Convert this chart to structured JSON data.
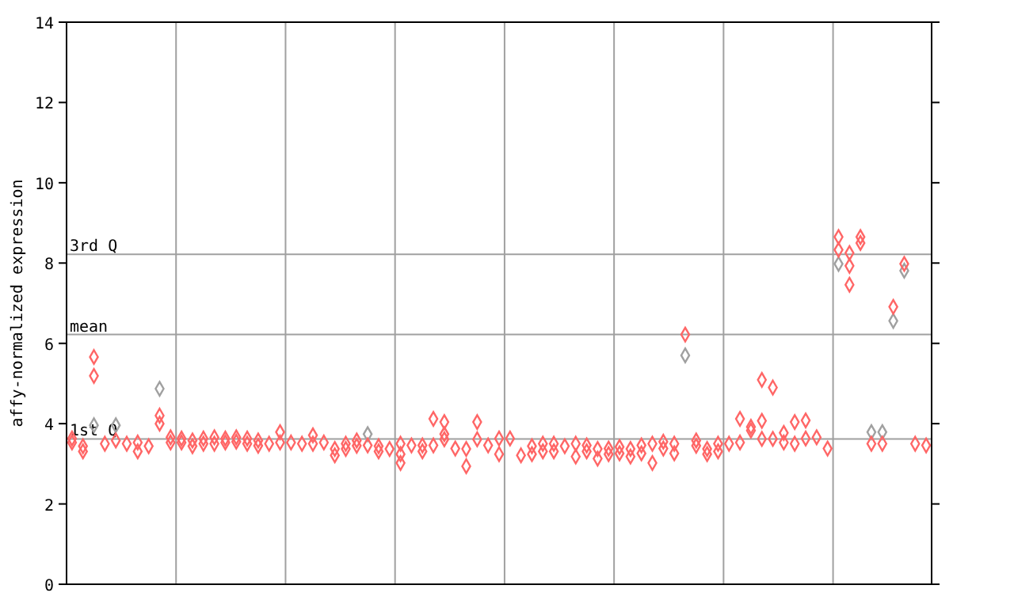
{
  "chart_data": {
    "type": "scatter",
    "ylabel": "affy-normalized expression",
    "ylim": [
      0,
      14
    ],
    "yticks": [
      0,
      2,
      4,
      6,
      8,
      10,
      12,
      14
    ],
    "grid": "x",
    "tick_labels": "y",
    "marker": "diamond",
    "categories": [
      null,
      null,
      null,
      null,
      null,
      null,
      null,
      null,
      null,
      null,
      null,
      null,
      null,
      null,
      null,
      null,
      null,
      null,
      null,
      null,
      null,
      null,
      null,
      null,
      null,
      null,
      null,
      null,
      null,
      null,
      null,
      null,
      null,
      null,
      null,
      null,
      null,
      null,
      null,
      null,
      null,
      null,
      null,
      null,
      null,
      null,
      null,
      null,
      null,
      null,
      null,
      null,
      null,
      null,
      null,
      null,
      null,
      null,
      null,
      null,
      null,
      null,
      null,
      null,
      null,
      null,
      null,
      null,
      null,
      null,
      null,
      null,
      null,
      null,
      null,
      null,
      null,
      null,
      null
    ],
    "ref_lines": [
      {
        "axis": "y",
        "value": 8.22,
        "label": "3rd Q",
        "color": "#a0a0a0"
      },
      {
        "axis": "y",
        "value": 6.22,
        "label": "mean",
        "color": "#a0a0a0"
      },
      {
        "axis": "y",
        "value": 3.62,
        "label": "1st Q",
        "color": "#a0a0a0"
      }
    ],
    "series": [
      {
        "color": "#a0a0a0",
        "values": [
          null,
          null,
          3.96,
          null,
          3.96,
          null,
          null,
          null,
          4.87,
          null,
          null,
          null,
          null,
          null,
          null,
          null,
          null,
          null,
          null,
          null,
          null,
          null,
          null,
          null,
          null,
          null,
          null,
          3.74,
          null,
          null,
          null,
          null,
          null,
          null,
          null,
          null,
          null,
          null,
          null,
          null,
          null,
          null,
          null,
          null,
          null,
          null,
          null,
          null,
          null,
          null,
          null,
          null,
          null,
          null,
          null,
          null,
          5.7,
          null,
          null,
          null,
          null,
          null,
          null,
          null,
          null,
          null,
          null,
          null,
          null,
          null,
          7.98,
          null,
          null,
          3.79,
          3.79,
          6.56,
          7.81,
          null,
          null
        ]
      },
      {
        "color": "#ff6666",
        "values": [
          3.63,
          3.44,
          5.66,
          3.5,
          3.58,
          3.5,
          3.53,
          3.44,
          4.2,
          3.66,
          3.63,
          3.58,
          3.63,
          3.66,
          3.63,
          3.66,
          3.63,
          3.58,
          3.5,
          3.79,
          3.53,
          3.5,
          3.71,
          3.53,
          3.37,
          3.5,
          3.58,
          3.46,
          3.44,
          3.37,
          3.5,
          3.46,
          3.46,
          4.12,
          4.04,
          3.38,
          3.37,
          4.04,
          3.46,
          3.63,
          3.63,
          3.21,
          3.44,
          3.5,
          3.5,
          3.44,
          3.5,
          3.46,
          3.37,
          3.38,
          3.42,
          3.37,
          3.46,
          3.5,
          3.55,
          3.5,
          6.22,
          3.58,
          3.37,
          3.5,
          3.5,
          4.12,
          3.92,
          5.09,
          4.9,
          3.77,
          4.04,
          4.08,
          3.66,
          3.38,
          8.65,
          8.25,
          8.65,
          3.5,
          3.5,
          6.91,
          7.98,
          3.5,
          3.46
        ]
      },
      {
        "color": "#ff6666",
        "values": [
          3.53,
          3.31,
          5.19,
          null,
          null,
          null,
          3.31,
          null,
          4.0,
          3.53,
          3.53,
          3.44,
          3.5,
          3.5,
          3.53,
          3.55,
          3.5,
          3.45,
          null,
          3.53,
          null,
          null,
          3.5,
          null,
          3.21,
          3.37,
          3.45,
          null,
          3.31,
          null,
          3.24,
          null,
          3.31,
          3.46,
          3.74,
          null,
          2.94,
          3.61,
          null,
          3.24,
          null,
          null,
          3.24,
          3.31,
          3.31,
          null,
          3.18,
          3.31,
          3.13,
          3.24,
          3.26,
          3.18,
          3.26,
          3.02,
          3.38,
          3.26,
          null,
          3.45,
          3.24,
          3.31,
          null,
          3.53,
          3.83,
          4.07,
          3.62,
          3.53,
          3.5,
          3.63,
          null,
          null,
          8.33,
          7.93,
          8.5,
          null,
          null,
          null,
          null,
          null,
          null
        ]
      },
      {
        "color": "#ff6666",
        "values": [
          null,
          null,
          null,
          null,
          null,
          null,
          null,
          null,
          null,
          null,
          null,
          null,
          null,
          null,
          null,
          null,
          null,
          null,
          null,
          null,
          null,
          null,
          null,
          null,
          null,
          null,
          null,
          null,
          null,
          null,
          3.02,
          null,
          null,
          null,
          3.61,
          null,
          null,
          null,
          null,
          null,
          null,
          null,
          null,
          null,
          null,
          null,
          null,
          null,
          null,
          null,
          null,
          null,
          null,
          null,
          null,
          null,
          null,
          null,
          null,
          null,
          null,
          null,
          null,
          3.62,
          null,
          null,
          null,
          null,
          null,
          null,
          null,
          7.46,
          null,
          null,
          null,
          null,
          null,
          null,
          null
        ]
      }
    ]
  }
}
